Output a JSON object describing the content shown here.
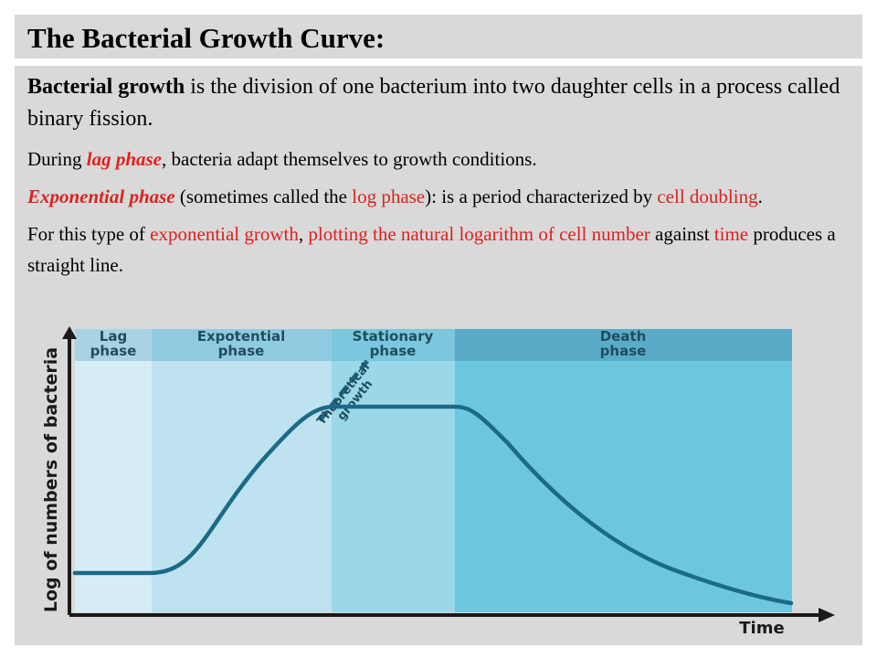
{
  "header": {
    "title": "The Bacterial Growth Curve:"
  },
  "paragraphs": {
    "p1": {
      "term": "Bacterial growth",
      "text": " is the division of one bacterium into two daughter cells in a process called binary fission."
    },
    "p2": {
      "a": "During ",
      "b": "lag phase",
      "c": ", bacteria adapt themselves to growth conditions."
    },
    "p3": {
      "a": "Exponential phase",
      "b": " (sometimes called the ",
      "c": "log phase",
      "d": "): is a period characterized by ",
      "e": "cell doubling",
      "f": "."
    },
    "p4": {
      "a": "For this type of ",
      "b": "exponential growth",
      "c": ", ",
      "d": "plotting the natural logarithm of cell number",
      "e": " against ",
      "f": "time",
      "g": " produces a straight line."
    }
  },
  "diagram": {
    "phases": [
      {
        "line1": "Lag",
        "line2": "phase",
        "color": "#d7edf5",
        "band": "#a9d3e4"
      },
      {
        "line1": "Expotential",
        "line2": "phase",
        "color": "#bfe2f0",
        "band": "#8fcbe0"
      },
      {
        "line1": "Stationary",
        "line2": "phase",
        "color": "#9ad7e8",
        "band": "#7bc7dd"
      },
      {
        "line1": "Death",
        "line2": "phase",
        "color": "#6cc6e0",
        "band": "#5aabc8"
      }
    ],
    "ylabel": "Log of numbers of bacteria",
    "xlabel": "Time",
    "theoretical": {
      "line1": "Theoretical",
      "line2": "growth"
    },
    "curve_color": "#1b6a86",
    "axis_color": "#1a1a1a"
  }
}
